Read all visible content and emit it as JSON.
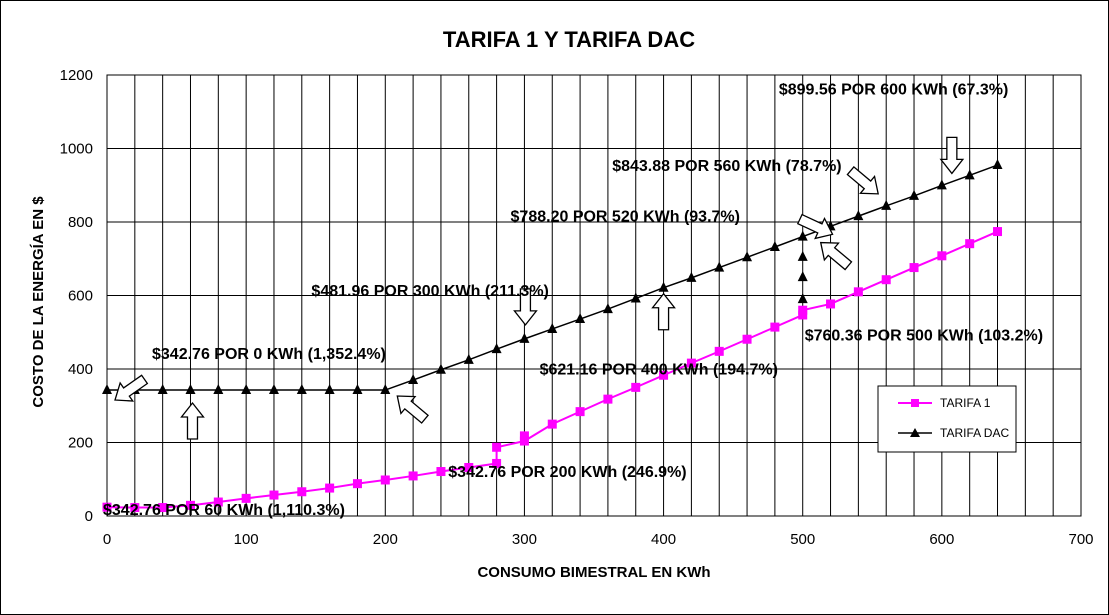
{
  "chart_data": {
    "type": "line",
    "title": "TARIFA 1 Y TARIFA DAC",
    "xlabel": "CONSUMO  BIMESTRAL  EN KWh",
    "ylabel": "COSTO DE LA ENERGÍA  EN $",
    "xlim": [
      0,
      700
    ],
    "ylim": [
      0,
      1200
    ],
    "xticks": [
      0,
      100,
      200,
      300,
      400,
      500,
      600,
      700
    ],
    "yticks": [
      0,
      200,
      400,
      600,
      800,
      1000,
      1200
    ],
    "grid": {
      "vertical": true,
      "horizontal": true
    },
    "legend_position": "right",
    "series": [
      {
        "name": "TARIFA 1",
        "color": "#ff00ff",
        "marker": "square",
        "x": [
          0,
          20,
          40,
          60,
          80,
          100,
          120,
          140,
          160,
          180,
          200,
          220,
          240,
          260,
          280,
          280,
          300,
          320,
          340,
          360,
          380,
          400,
          420,
          440,
          460,
          480,
          500,
          500,
          520,
          540,
          560,
          580,
          600,
          620,
          640
        ],
        "y": [
          24,
          23,
          23,
          29,
          38,
          48,
          57,
          66,
          76,
          88,
          98,
          109,
          121,
          132,
          143,
          187,
          204,
          250,
          284,
          318,
          350,
          383,
          416,
          448,
          481,
          514,
          547,
          560,
          577,
          610,
          643,
          676,
          708,
          741,
          774
        ]
      },
      {
        "name": "TARIFA DAC",
        "color": "#000000",
        "marker": "triangle",
        "x": [
          0,
          20,
          40,
          60,
          80,
          100,
          120,
          140,
          160,
          180,
          200,
          220,
          240,
          260,
          280,
          300,
          320,
          340,
          360,
          380,
          400,
          420,
          440,
          460,
          480,
          500,
          520,
          540,
          560,
          580,
          600,
          620,
          640
        ],
        "y": [
          342.76,
          342.76,
          342.76,
          342.76,
          342.76,
          342.76,
          342.76,
          342.76,
          342.76,
          342.76,
          342.76,
          370,
          398,
          425,
          454,
          481.96,
          509,
          536,
          563,
          592,
          621.16,
          648,
          676,
          704,
          732,
          760.36,
          788.2,
          816,
          843.88,
          871,
          899.56,
          927,
          955
        ]
      }
    ],
    "dac_extra_markers": {
      "x": 500,
      "y": [
        590,
        650,
        705
      ]
    },
    "tarifa1_extra_markers": {
      "x": 300,
      "y": [
        218
      ]
    },
    "annotations": [
      {
        "id": "a1",
        "text": "$342.76 POR 0 KWh (1,352.4%)",
        "x": 0,
        "y": 342.76,
        "arrow": "left"
      },
      {
        "id": "a2",
        "text": "$342.76 POR 60 KWh (1,110.3%)",
        "x": 60,
        "y": 342.76,
        "arrow": "up"
      },
      {
        "id": "a3",
        "text": "$342.76 POR 200 KWh (246.9%)",
        "x": 200,
        "y": 342.76,
        "arrow": "up-left"
      },
      {
        "id": "a4",
        "text": "$481.96 POR 300 KWh (211.3%)",
        "x": 300,
        "y": 481.96,
        "arrow": "down"
      },
      {
        "id": "a5",
        "text": "$621.16 POR 400 KWh (194.7%)",
        "x": 400,
        "y": 621.16,
        "arrow": "up"
      },
      {
        "id": "a6",
        "text": "$760.36 POR 500 KWh (103.2%)",
        "x": 500,
        "y": 760.36,
        "arrow": "up-left"
      },
      {
        "id": "a7",
        "text": "$788.20 POR 520 KWh (93.7%)",
        "x": 520,
        "y": 788.2,
        "arrow": "right"
      },
      {
        "id": "a8",
        "text": "$843.88 POR 560 KWh (78.7%)",
        "x": 560,
        "y": 843.88,
        "arrow": "down-right"
      },
      {
        "id": "a9",
        "text": "$899.56 POR 600 KWh (67.3%)",
        "x": 600,
        "y": 899.56,
        "arrow": "down"
      }
    ]
  }
}
